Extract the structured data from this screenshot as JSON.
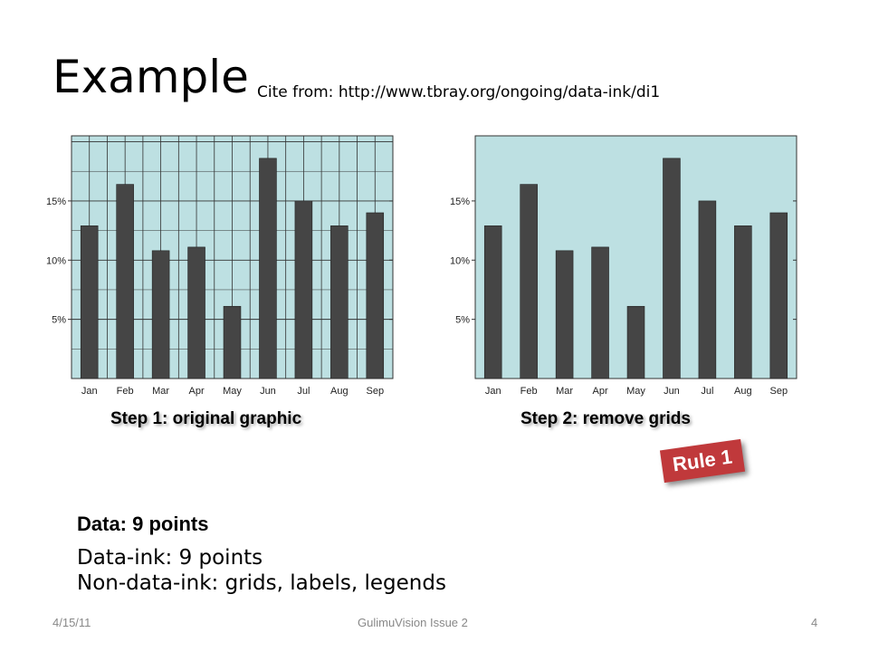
{
  "slide": {
    "title": "Example",
    "cite": "Cite from: http://www.tbray.org/ongoing/data-ink/di1",
    "caption_step1": "Step 1: original graphic",
    "caption_step2": "Step 2: remove grids",
    "rule_badge": "Rule 1",
    "data_heading": "Data: 9 points",
    "body_line1": "Data-ink: 9 points",
    "body_line2": "Non-data-ink: grids, labels, legends",
    "footer_date": "4/15/11",
    "footer_center": "GulimuVision Issue 2",
    "footer_page": "4"
  },
  "colors": {
    "plot_background": "#bde0e2",
    "bar": "#454545",
    "rule_badge": "#c0393b"
  },
  "chart_data": [
    {
      "type": "bar",
      "title": "",
      "xlabel": "",
      "ylabel": "",
      "categories": [
        "Jan",
        "Feb",
        "Mar",
        "Apr",
        "May",
        "Jun",
        "Jul",
        "Aug",
        "Sep"
      ],
      "values": [
        12.9,
        16.4,
        10.8,
        11.1,
        6.1,
        18.6,
        15.0,
        12.9,
        14.0
      ],
      "yticks": [
        "5%",
        "10%",
        "15%"
      ],
      "ylim": [
        0,
        20.5
      ],
      "grid": true
    },
    {
      "type": "bar",
      "title": "",
      "xlabel": "",
      "ylabel": "",
      "categories": [
        "Jan",
        "Feb",
        "Mar",
        "Apr",
        "May",
        "Jun",
        "Jul",
        "Aug",
        "Sep"
      ],
      "values": [
        12.9,
        16.4,
        10.8,
        11.1,
        6.1,
        18.6,
        15.0,
        12.9,
        14.0
      ],
      "yticks": [
        "5%",
        "10%",
        "15%"
      ],
      "ylim": [
        0,
        20.5
      ],
      "grid": false
    }
  ]
}
